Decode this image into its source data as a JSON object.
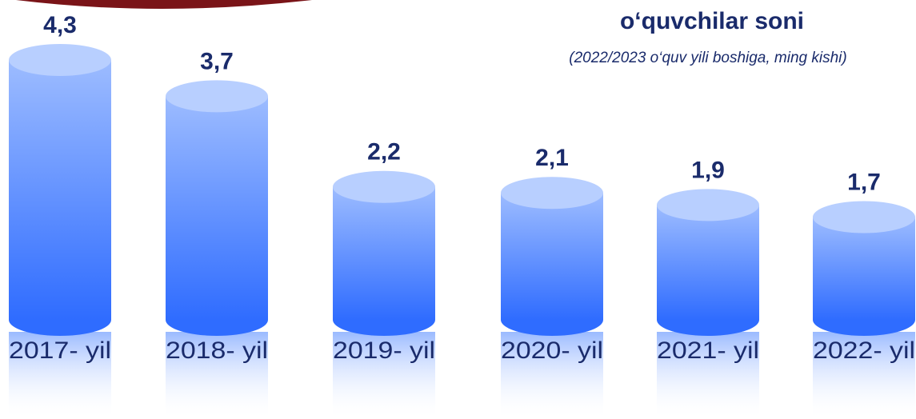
{
  "chart_data": {
    "type": "cylinder-bar",
    "title": "o‘quvchilar soni",
    "subtitle": "(2022/2023 o‘quv yili boshiga, ming kishi)",
    "categories": [
      "2017- yil",
      "2018- yil",
      "2019- yil",
      "2020- yil",
      "2021- yil",
      "2022- yil"
    ],
    "values": [
      4.3,
      3.7,
      2.2,
      2.1,
      1.9,
      1.7
    ],
    "value_labels": [
      "4,3",
      "3,7",
      "2,2",
      "2,1",
      "1,9",
      "1,7"
    ],
    "color": "#2f6cff"
  }
}
